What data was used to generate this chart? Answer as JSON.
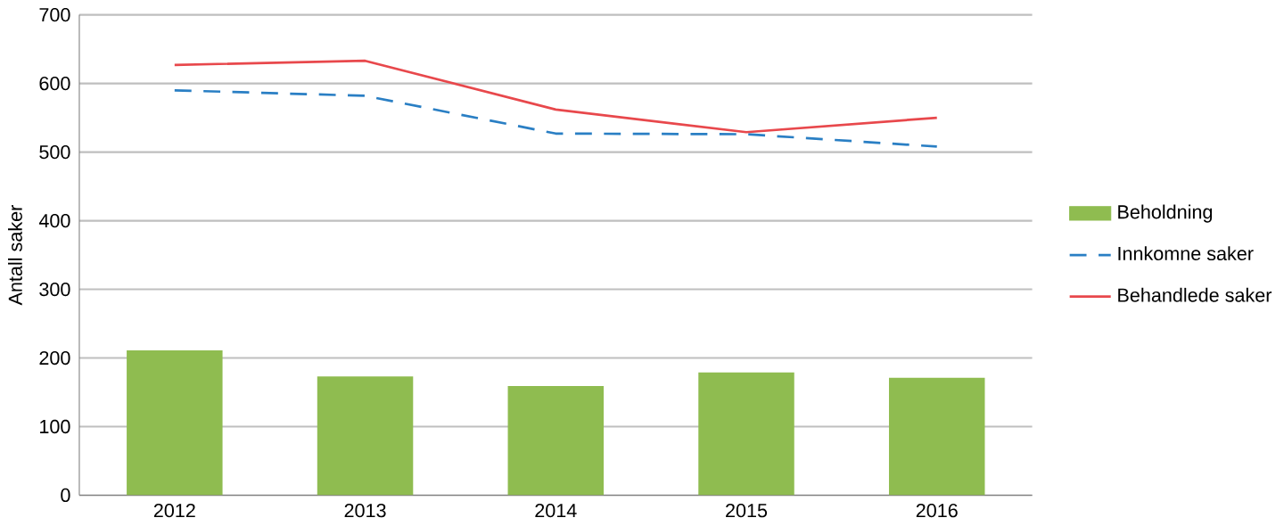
{
  "chart_data": {
    "type": "bar",
    "ylabel": "Antall saker",
    "categories": [
      "2012",
      "2013",
      "2014",
      "2015",
      "2016"
    ],
    "series": [
      {
        "name": "Beholdning",
        "color": "#8fbc50",
        "values": [
          211,
          173,
          159,
          179,
          171
        ]
      },
      {
        "name": "Innkomne saker",
        "type": "line",
        "line_style": "dashed",
        "color": "#2a7fc4",
        "values": [
          590,
          582,
          527,
          526,
          508
        ]
      },
      {
        "name": "Behandlede saker",
        "type": "line",
        "line_style": "solid",
        "color": "#e8484c",
        "values": [
          627,
          633,
          562,
          529,
          550
        ]
      }
    ],
    "ylim": [
      0,
      700
    ],
    "yticks": [
      0,
      100,
      200,
      300,
      400,
      500,
      600,
      700
    ],
    "grid": "y",
    "legend": "right",
    "marker": "none"
  }
}
